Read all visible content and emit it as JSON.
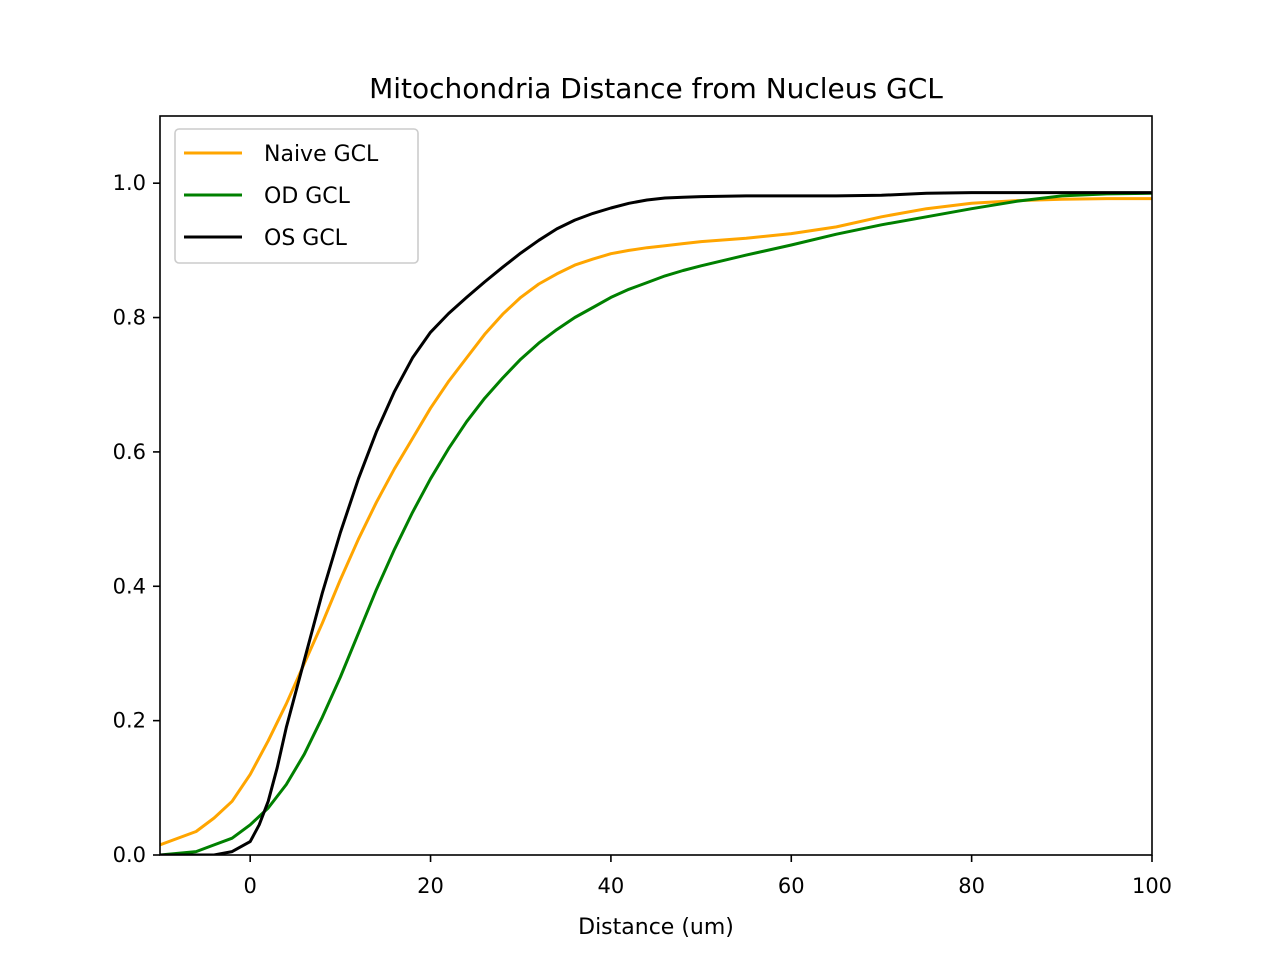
{
  "chart_data": {
    "type": "line",
    "title": "Mitochondria Distance from Nucleus GCL",
    "xlabel": "Distance (um)",
    "ylabel": "",
    "xlim": [
      -10,
      100
    ],
    "ylim": [
      0,
      1.1
    ],
    "x_ticks": [
      0,
      20,
      40,
      60,
      80,
      100
    ],
    "x_tick_labels": [
      "0",
      "20",
      "40",
      "60",
      "80",
      "100"
    ],
    "y_ticks": [
      0.0,
      0.2,
      0.4,
      0.6,
      0.8,
      1.0
    ],
    "y_tick_labels": [
      "0.0",
      "0.2",
      "0.4",
      "0.6",
      "0.8",
      "1.0"
    ],
    "grid": false,
    "legend_position": "top-left",
    "series": [
      {
        "name": "Naive GCL",
        "color": "#ffa500",
        "x": [
          -10,
          -6,
          -4,
          -2,
          0,
          2,
          4,
          6,
          8,
          10,
          12,
          14,
          16,
          18,
          20,
          22,
          24,
          26,
          28,
          30,
          32,
          34,
          36,
          38,
          40,
          42,
          44,
          46,
          48,
          50,
          55,
          60,
          65,
          70,
          75,
          80,
          85,
          90,
          95,
          100
        ],
        "values": [
          0.015,
          0.035,
          0.055,
          0.08,
          0.12,
          0.17,
          0.225,
          0.285,
          0.345,
          0.41,
          0.47,
          0.525,
          0.575,
          0.62,
          0.665,
          0.705,
          0.74,
          0.775,
          0.805,
          0.83,
          0.85,
          0.865,
          0.878,
          0.887,
          0.895,
          0.9,
          0.904,
          0.907,
          0.91,
          0.913,
          0.918,
          0.925,
          0.935,
          0.95,
          0.962,
          0.97,
          0.974,
          0.976,
          0.977,
          0.977
        ]
      },
      {
        "name": "OD GCL",
        "color": "#008000",
        "x": [
          -10,
          -6,
          -4,
          -2,
          0,
          2,
          4,
          6,
          8,
          10,
          12,
          14,
          16,
          18,
          20,
          22,
          24,
          26,
          28,
          30,
          32,
          34,
          36,
          38,
          40,
          42,
          44,
          46,
          48,
          50,
          55,
          60,
          65,
          70,
          75,
          80,
          85,
          90,
          95,
          100
        ],
        "values": [
          0.0,
          0.005,
          0.015,
          0.025,
          0.045,
          0.07,
          0.105,
          0.15,
          0.205,
          0.265,
          0.33,
          0.395,
          0.455,
          0.51,
          0.56,
          0.605,
          0.645,
          0.68,
          0.71,
          0.738,
          0.762,
          0.782,
          0.8,
          0.815,
          0.83,
          0.842,
          0.852,
          0.862,
          0.87,
          0.877,
          0.893,
          0.908,
          0.924,
          0.938,
          0.95,
          0.962,
          0.973,
          0.981,
          0.984,
          0.985
        ]
      },
      {
        "name": "OS GCL",
        "color": "#000000",
        "x": [
          -10,
          -6,
          -4,
          -2,
          0,
          1,
          2,
          3,
          4,
          6,
          8,
          10,
          12,
          14,
          16,
          18,
          20,
          22,
          24,
          26,
          28,
          30,
          32,
          34,
          36,
          38,
          40,
          42,
          44,
          46,
          48,
          50,
          55,
          60,
          65,
          70,
          75,
          80,
          85,
          90,
          95,
          100
        ],
        "values": [
          0.0,
          0.0,
          0.0,
          0.005,
          0.02,
          0.045,
          0.08,
          0.13,
          0.19,
          0.29,
          0.39,
          0.48,
          0.56,
          0.63,
          0.69,
          0.74,
          0.778,
          0.806,
          0.83,
          0.853,
          0.875,
          0.896,
          0.915,
          0.932,
          0.945,
          0.955,
          0.963,
          0.97,
          0.975,
          0.978,
          0.979,
          0.98,
          0.981,
          0.981,
          0.981,
          0.982,
          0.985,
          0.986,
          0.986,
          0.986,
          0.986,
          0.986
        ]
      }
    ]
  }
}
